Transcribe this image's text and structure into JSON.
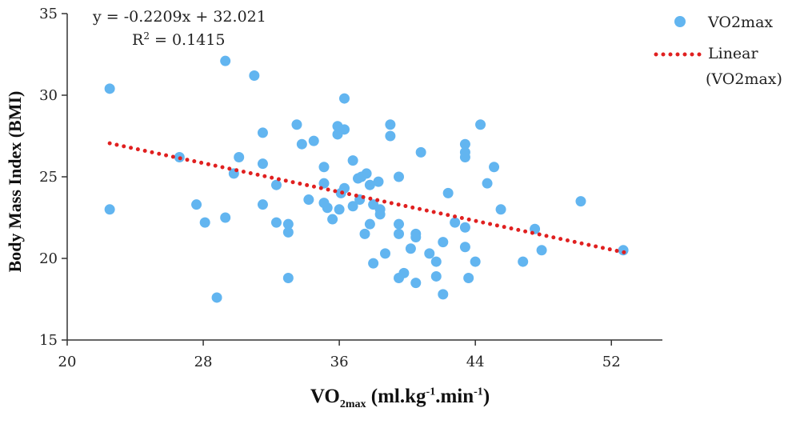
{
  "chart_data": {
    "type": "scatter",
    "xlim": [
      20,
      55
    ],
    "ylim": [
      15,
      35
    ],
    "xticks": [
      "20",
      "28",
      "36",
      "44",
      "52"
    ],
    "yticks": [
      "15",
      "20",
      "25",
      "30",
      "35"
    ],
    "ylabel": "Body Mass Index (BMI)",
    "xlabel": {
      "base": "VO",
      "sub": "2max",
      "units_a": " (ml.kg",
      "sup1": "-1",
      "units_b": ".min",
      "sup2": "-1",
      "units_c": ")"
    },
    "equation": "y = -0.2209x + 32.021",
    "r_squared": {
      "base": "R",
      "sup": "2",
      "rest": " = 0.1415"
    },
    "legend": {
      "series": "VO2max",
      "trend_line1": "Linear",
      "trend_line2": "(VO2max)",
      "placement": "top-right"
    },
    "trendline": {
      "slope": -0.2209,
      "intercept": 32.021,
      "x_range": [
        22.5,
        52.8
      ]
    },
    "colors": {
      "points": "#62b5f0",
      "trendline": "#e02020",
      "axis": "#333333"
    },
    "series": [
      {
        "name": "VO2max",
        "points": [
          [
            22.5,
            30.4
          ],
          [
            22.5,
            23.0
          ],
          [
            26.6,
            26.2
          ],
          [
            27.6,
            23.3
          ],
          [
            28.1,
            22.2
          ],
          [
            28.8,
            17.6
          ],
          [
            29.3,
            32.1
          ],
          [
            29.3,
            22.5
          ],
          [
            29.8,
            25.2
          ],
          [
            30.1,
            26.2
          ],
          [
            31.0,
            31.2
          ],
          [
            31.5,
            27.7
          ],
          [
            31.5,
            25.8
          ],
          [
            31.5,
            23.3
          ],
          [
            32.3,
            24.5
          ],
          [
            32.3,
            22.2
          ],
          [
            33.0,
            22.1
          ],
          [
            33.0,
            21.6
          ],
          [
            33.0,
            18.8
          ],
          [
            33.5,
            28.2
          ],
          [
            33.8,
            27.0
          ],
          [
            34.2,
            23.6
          ],
          [
            34.5,
            27.2
          ],
          [
            35.1,
            25.6
          ],
          [
            35.1,
            24.6
          ],
          [
            35.1,
            23.4
          ],
          [
            35.3,
            23.1
          ],
          [
            35.6,
            22.4
          ],
          [
            35.9,
            28.1
          ],
          [
            35.9,
            27.6
          ],
          [
            36.0,
            23.0
          ],
          [
            36.1,
            24.0
          ],
          [
            36.3,
            27.9
          ],
          [
            36.3,
            29.8
          ],
          [
            36.3,
            24.3
          ],
          [
            36.8,
            26.0
          ],
          [
            36.8,
            23.2
          ],
          [
            37.1,
            24.9
          ],
          [
            37.2,
            23.6
          ],
          [
            37.3,
            25.0
          ],
          [
            37.6,
            25.2
          ],
          [
            37.8,
            24.5
          ],
          [
            37.8,
            22.1
          ],
          [
            38.0,
            19.7
          ],
          [
            38.0,
            23.3
          ],
          [
            38.3,
            24.7
          ],
          [
            38.4,
            23.0
          ],
          [
            38.4,
            22.7
          ],
          [
            38.7,
            20.3
          ],
          [
            37.5,
            21.5
          ],
          [
            39.0,
            28.2
          ],
          [
            39.0,
            27.5
          ],
          [
            39.5,
            25.0
          ],
          [
            39.5,
            22.1
          ],
          [
            39.5,
            21.5
          ],
          [
            39.5,
            18.8
          ],
          [
            39.8,
            19.1
          ],
          [
            40.2,
            20.6
          ],
          [
            40.5,
            21.5
          ],
          [
            40.5,
            21.3
          ],
          [
            40.5,
            18.5
          ],
          [
            40.8,
            26.5
          ],
          [
            41.3,
            20.3
          ],
          [
            41.7,
            19.8
          ],
          [
            41.7,
            18.9
          ],
          [
            42.1,
            21.0
          ],
          [
            42.1,
            17.8
          ],
          [
            42.4,
            24.0
          ],
          [
            42.8,
            22.2
          ],
          [
            43.4,
            27.0
          ],
          [
            43.4,
            26.5
          ],
          [
            43.4,
            26.2
          ],
          [
            43.4,
            21.9
          ],
          [
            43.4,
            20.7
          ],
          [
            43.6,
            18.8
          ],
          [
            44.0,
            19.8
          ],
          [
            44.3,
            28.2
          ],
          [
            44.7,
            24.6
          ],
          [
            45.1,
            25.6
          ],
          [
            45.5,
            23.0
          ],
          [
            46.8,
            19.8
          ],
          [
            47.5,
            21.8
          ],
          [
            47.9,
            20.5
          ],
          [
            50.2,
            23.5
          ],
          [
            52.7,
            20.5
          ]
        ]
      }
    ]
  }
}
